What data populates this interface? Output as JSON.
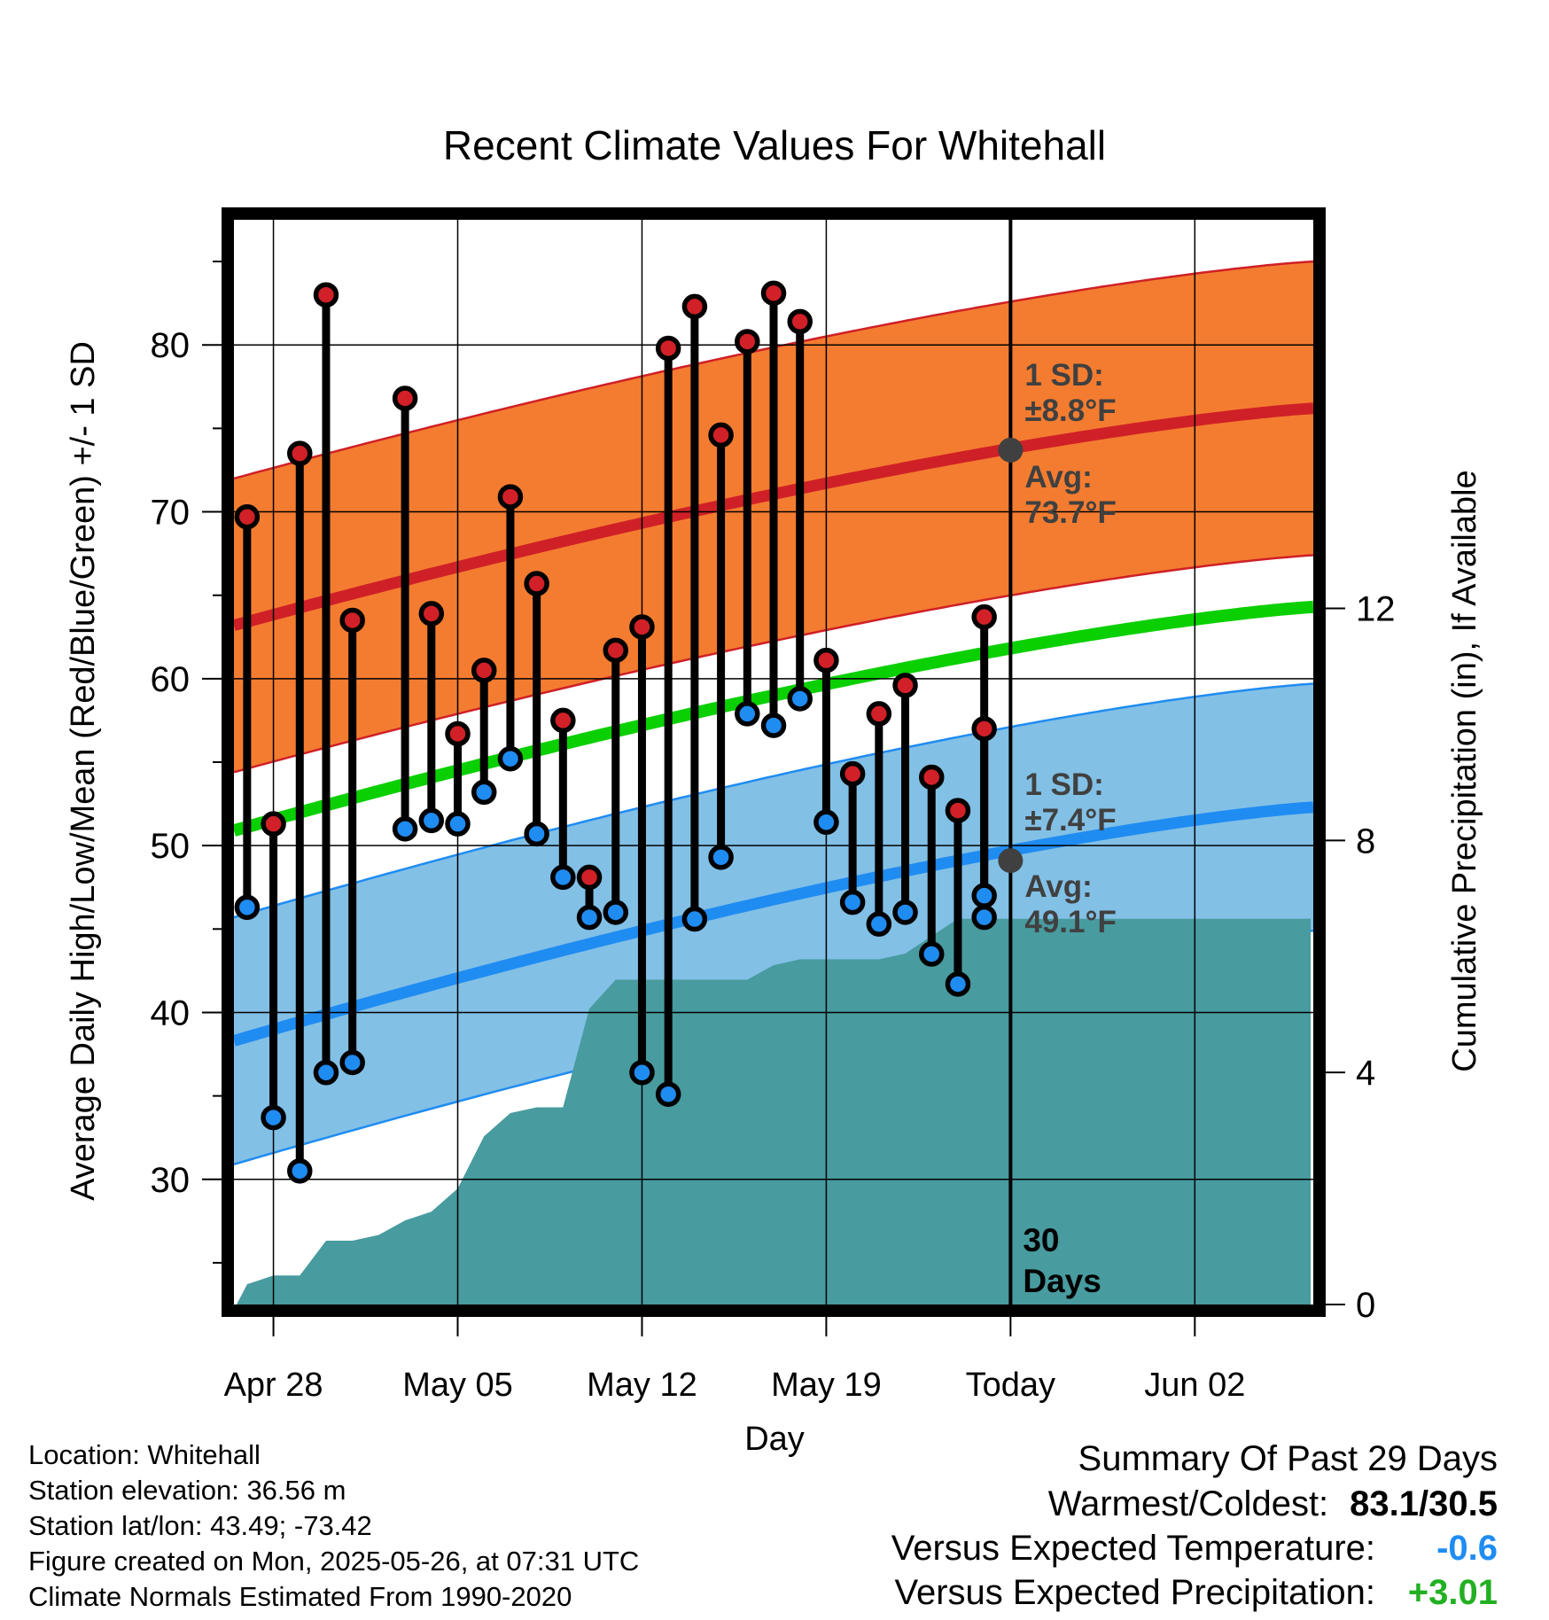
{
  "chart_data": {
    "type": "line",
    "title": "Recent Climate Values For Whitehall",
    "xlabel": "Day",
    "ylabel": "Average Daily High/Low/Mean (Red/Blue/Green) +/- 1 SD",
    "y2label": "Cumulative Precipitation (in), If Available",
    "x_tick_labels": [
      "Apr 28",
      "May 05",
      "May 12",
      "May 19",
      "Today",
      "Jun 02"
    ],
    "x_tick_days": [
      2,
      9,
      16,
      23,
      30,
      37
    ],
    "x_range_days": [
      0.5,
      41.5
    ],
    "ylim": [
      22.5,
      87.5
    ],
    "y_ticks": [
      30,
      40,
      50,
      60,
      70,
      80
    ],
    "y2lim": [
      0,
      18.7
    ],
    "y2_ticks": [
      0,
      4,
      8,
      12
    ],
    "grid": true,
    "today_label": "30\nDays",
    "normal_high": {
      "start": 63.2,
      "end": 76.2,
      "sd": 8.8,
      "sd_label": "1 SD:\n±8.8°F",
      "avg_label": "Avg:\n73.7°F",
      "today_value": 73.7
    },
    "normal_low": {
      "start": 38.3,
      "end": 52.3,
      "sd": 7.4,
      "sd_label": "1 SD:\n±7.4°F",
      "avg_label": "Avg:\n49.1°F",
      "today_value": 49.1
    },
    "normal_mean": {
      "start": 50.9,
      "end": 64.3
    },
    "series": [
      {
        "name": "High",
        "x": [
          1,
          2,
          3,
          4,
          5,
          7,
          8,
          9,
          10,
          11,
          12,
          13,
          14,
          15,
          16,
          17,
          18,
          19,
          20,
          21,
          22,
          23,
          24,
          25,
          26,
          27,
          28,
          29
        ],
        "values": [
          69.7,
          51.3,
          73.5,
          83.0,
          63.5,
          76.8,
          63.9,
          56.7,
          60.5,
          70.9,
          65.7,
          57.5,
          48.1,
          61.7,
          63.1,
          79.8,
          82.3,
          74.6,
          80.2,
          83.1,
          81.4,
          61.1,
          54.3,
          57.9,
          59.6,
          54.1,
          52.1,
          57.0
        ]
      },
      {
        "name": "Low",
        "x": [
          1,
          2,
          3,
          4,
          5,
          7,
          8,
          9,
          10,
          11,
          12,
          13,
          14,
          15,
          16,
          17,
          18,
          19,
          20,
          21,
          22,
          23,
          24,
          25,
          26,
          27,
          28,
          29
        ],
        "values": [
          46.3,
          33.7,
          30.5,
          36.4,
          37.0,
          51.0,
          51.5,
          51.3,
          53.2,
          55.2,
          50.7,
          48.1,
          45.7,
          46.0,
          36.4,
          35.1,
          45.6,
          49.3,
          57.9,
          57.2,
          58.8,
          51.4,
          46.6,
          45.3,
          46.0,
          43.5,
          41.7,
          45.7
        ]
      }
    ],
    "extra_points": {
      "high": {
        "x": 30,
        "value": 63.7
      },
      "low": {
        "x": 30,
        "value": 47.0
      }
    },
    "precipitation": {
      "x": [
        0.6,
        1,
        2,
        3,
        4,
        5,
        6,
        7,
        8,
        9,
        10,
        11,
        12,
        13,
        14,
        15,
        16,
        17,
        18,
        19,
        20,
        21,
        22,
        23,
        24,
        25,
        26,
        27,
        28,
        29,
        41.4
      ],
      "values": [
        0,
        0.35,
        0.5,
        0.5,
        1.1,
        1.1,
        1.2,
        1.45,
        1.6,
        2.0,
        2.9,
        3.3,
        3.4,
        3.4,
        5.1,
        5.6,
        5.6,
        5.6,
        5.6,
        5.6,
        5.6,
        5.85,
        5.95,
        5.95,
        5.95,
        5.95,
        6.05,
        6.35,
        6.65,
        6.65,
        6.65
      ]
    },
    "colors": {
      "high_band": "#f47c30",
      "high_line": "#cf2027",
      "low_band": "#82c0e6",
      "low_line": "#1f8cf2",
      "mean_line": "#0acf00",
      "precip": "#489b9f",
      "high_dot": "#d12027",
      "low_dot": "#1f8cf2",
      "annotation": "#404040"
    }
  },
  "info": {
    "location": "Location: Whitehall",
    "elevation": "Station elevation: 36.56 m",
    "latlon": "Station lat/lon: 43.49; -73.42",
    "created": "Figure created on Mon, 2025-05-26, at 07:31 UTC",
    "normals": "Climate Normals Estimated From 1990-2020"
  },
  "summary": {
    "title": "Summary Of Past 29 Days",
    "warm_cold_label": "Warmest/Coldest:",
    "warm_cold_value": "83.1/30.5",
    "temp_label": "Versus Expected Temperature:",
    "temp_value": "-0.6",
    "temp_color": "#1f8cf2",
    "precip_label": "Versus Expected Precipitation:",
    "precip_value": "+3.01",
    "precip_color": "#22b022"
  }
}
